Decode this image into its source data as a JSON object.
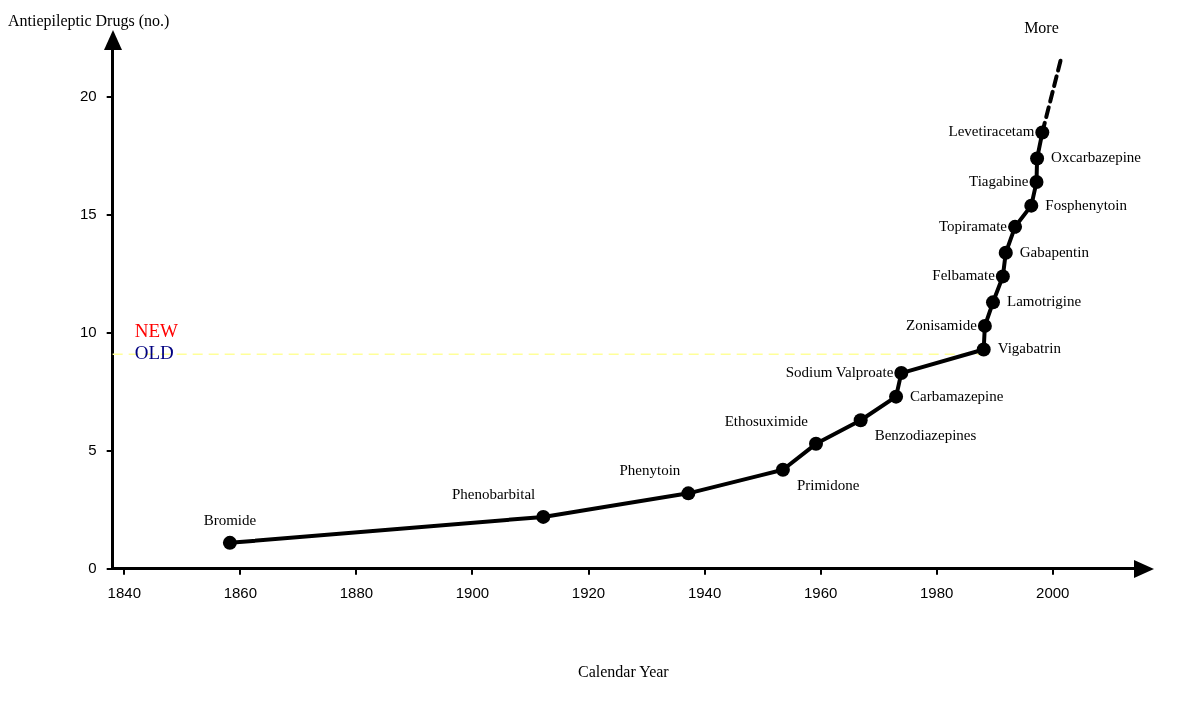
{
  "chart_data": {
    "type": "line",
    "xlabel": "Calendar Year",
    "ylabel": "Antiepileptic Drugs (no.)",
    "xlim": [
      1838,
      2014
    ],
    "xticks": [
      1840,
      1860,
      1880,
      1900,
      1920,
      1940,
      1960,
      1980,
      2000
    ],
    "ylim": [
      0,
      22
    ],
    "yticks": [
      0,
      5,
      10,
      15,
      20
    ],
    "grid": false,
    "legend": false,
    "series": [
      {
        "color": "#000000",
        "marker": "circle",
        "line_style": "solid",
        "x": [
          1858.2,
          1912.2,
          1937.2,
          1953.5,
          1959.2,
          1966.9,
          1973.0,
          1973.9,
          1988.1,
          1988.3,
          1989.7,
          1991.4,
          1991.9,
          1993.5,
          1996.3,
          1997.2,
          1997.3,
          1998.2
        ],
        "values": [
          1.1,
          2.2,
          3.2,
          4.2,
          5.3,
          6.3,
          7.3,
          8.3,
          9.3,
          10.3,
          11.3,
          12.4,
          13.4,
          14.5,
          15.4,
          16.4,
          17.4,
          18.5
        ],
        "value_labels": [
          "Bromide",
          "Phenobarbital",
          "Phenytoin",
          "Primidone",
          "Ethosuximide",
          "Benzodiazepines",
          "Carbamazepine",
          "Sodium Valproate",
          "Vigabatrin",
          "Zonisamide",
          "Lamotrigine",
          "Felbamate",
          "Gabapentin",
          "Topiramate",
          "Fosphenytoin",
          "Tiagabine",
          "Oxcarbazepine",
          "Levetiracetam"
        ]
      },
      {
        "color": "#000000",
        "marker": "none",
        "line_style": "dashed",
        "x": [
          1998.2,
          2001.5
        ],
        "values": [
          18.5,
          21.7
        ]
      }
    ],
    "ref_lines": [
      {
        "axis": "y",
        "value": 9.1,
        "color": "#ffff99",
        "line_style": "dashed"
      }
    ],
    "annotations": [
      "NEW",
      "OLD",
      "More"
    ]
  }
}
